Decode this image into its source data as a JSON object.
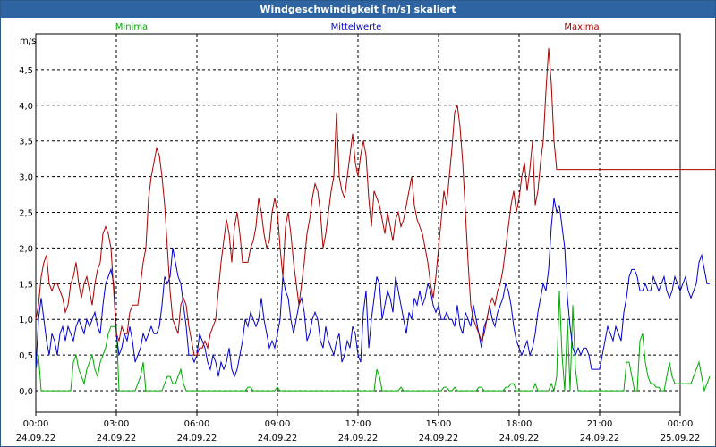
{
  "window": {
    "title": "Windgeschwindigkeit [m/s] skaliert"
  },
  "chart_data": {
    "type": "line",
    "title": "Windgeschwindigkeit [m/s] skaliert",
    "ylabel": "m/s",
    "xlabel": "",
    "ylim": [
      -0.3,
      5.0
    ],
    "yticks": [
      0.0,
      0.5,
      1.0,
      1.5,
      2.0,
      2.5,
      3.0,
      3.5,
      4.0,
      4.5
    ],
    "ytick_labels": [
      "0,0",
      "0,5",
      "1,0",
      "1,5",
      "2,0",
      "2,5",
      "3,0",
      "3,5",
      "4,0",
      "4,5"
    ],
    "xlim_hours": [
      0,
      24
    ],
    "xticks": [
      {
        "hour": 0,
        "time": "00:00",
        "date": "24.09.22"
      },
      {
        "hour": 3,
        "time": "03:00",
        "date": "24.09.22"
      },
      {
        "hour": 6,
        "time": "06:00",
        "date": "24.09.22"
      },
      {
        "hour": 9,
        "time": "09:00",
        "date": "24.09.22"
      },
      {
        "hour": 12,
        "time": "12:00",
        "date": "24.09.22"
      },
      {
        "hour": 15,
        "time": "15:00",
        "date": "24.09.22"
      },
      {
        "hour": 18,
        "time": "18:00",
        "date": "24.09.22"
      },
      {
        "hour": 21,
        "time": "21:00",
        "date": "24.09.22"
      },
      {
        "hour": 24,
        "time": "00:00",
        "date": "25.09.22"
      }
    ],
    "grid": true,
    "legend_position": "top",
    "x_step_hours": 0.1,
    "series": [
      {
        "name": "Minima",
        "color": "#00aa00",
        "values": [
          0.3,
          0.5,
          0.0,
          0.0,
          0.0,
          0.0,
          0.0,
          0.0,
          0.0,
          0.0,
          0.0,
          0.0,
          0.0,
          0.0,
          0.4,
          0.5,
          0.3,
          0.2,
          0.1,
          0.3,
          0.4,
          0.5,
          0.3,
          0.2,
          0.4,
          0.5,
          0.6,
          0.8,
          0.9,
          0.9,
          0.9,
          0.0,
          0.0,
          0.0,
          0.0,
          0.0,
          0.0,
          0.0,
          0.1,
          0.2,
          0.4,
          0.0,
          0.0,
          0.0,
          0.0,
          0.0,
          0.0,
          0.0,
          0.1,
          0.2,
          0.2,
          0.1,
          0.1,
          0.2,
          0.3,
          0.1,
          0.0,
          0.0,
          0.0,
          0.0,
          0.0,
          0.0,
          0.0,
          0.0,
          0.0,
          0.0,
          0.0,
          0.0,
          0.0,
          0.0,
          0.0,
          0.0,
          0.0,
          0.0,
          0.0,
          0.0,
          0.0,
          0.0,
          0.0,
          0.05,
          0.05,
          0.0,
          0.0,
          0.0,
          0.0,
          0.0,
          0.0,
          0.0,
          0.0,
          0.0,
          0.05,
          0.0,
          0.0,
          0.0,
          0.0,
          0.0,
          0.0,
          0.0,
          0.0,
          0.0,
          0.0,
          0.0,
          0.0,
          0.0,
          0.0,
          0.0,
          0.0,
          0.0,
          0.0,
          0.0,
          0.0,
          0.0,
          0.0,
          0.0,
          0.0,
          0.0,
          0.0,
          0.0,
          0.0,
          0.0,
          0.0,
          0.0,
          0.0,
          0.0,
          0.0,
          0.0,
          0.0,
          0.3,
          0.2,
          0.0,
          0.0,
          0.0,
          0.0,
          0.0,
          0.0,
          0.0,
          0.05,
          0.0,
          0.0,
          0.0,
          0.0,
          0.0,
          0.0,
          0.0,
          0.0,
          0.0,
          0.0,
          0.0,
          0.0,
          0.0,
          0.0,
          0.0,
          0.05,
          0.05,
          0.0,
          0.0,
          0.05,
          0.0,
          0.0,
          0.0,
          0.0,
          0.0,
          0.0,
          0.0,
          0.0,
          0.05,
          0.05,
          0.0,
          0.0,
          0.0,
          0.0,
          0.0,
          0.0,
          0.0,
          0.0,
          0.05,
          0.05,
          0.1,
          0.1,
          0.0,
          0.0,
          0.0,
          0.0,
          0.0,
          0.0,
          0.0,
          0.1,
          0.0,
          0.0,
          0.0,
          0.0,
          0.0,
          0.1,
          0.0,
          0.2,
          1.4,
          0.5,
          0.0,
          1.0,
          0.0,
          1.2,
          0.3,
          0.0,
          0.0,
          0.0,
          0.0,
          0.0,
          0.0,
          0.0,
          0.0,
          0.0,
          0.0,
          0.0,
          0.0,
          0.0,
          0.0,
          0.0,
          0.0,
          0.0,
          0.0,
          0.4,
          0.4,
          0.2,
          0.0,
          0.0,
          0.7,
          0.8,
          0.4,
          0.2,
          0.1,
          0.1,
          0.05,
          0.05,
          0.0,
          0.0,
          0.2,
          0.4,
          0.2,
          0.1,
          0.1,
          0.1,
          0.1,
          0.1,
          0.1,
          0.1,
          0.2,
          0.3,
          0.4,
          0.2,
          0.0,
          0.1,
          0.2
        ]
      },
      {
        "name": "Mittelwerte",
        "color": "#0000cc",
        "values": [
          0.3,
          1.0,
          1.3,
          1.0,
          0.7,
          0.5,
          0.8,
          0.7,
          0.5,
          0.8,
          0.9,
          0.7,
          0.9,
          0.8,
          0.7,
          0.9,
          1.0,
          0.9,
          0.8,
          1.0,
          0.9,
          1.0,
          1.1,
          0.9,
          0.8,
          1.2,
          1.5,
          1.6,
          1.7,
          1.5,
          0.8,
          0.5,
          0.6,
          0.8,
          0.7,
          0.9,
          0.7,
          0.4,
          0.5,
          0.6,
          0.8,
          0.7,
          0.8,
          0.9,
          0.8,
          0.8,
          0.9,
          1.2,
          1.6,
          1.5,
          1.6,
          2.0,
          1.8,
          1.6,
          1.5,
          1.2,
          0.9,
          0.5,
          0.5,
          0.4,
          0.5,
          0.8,
          0.7,
          0.6,
          0.4,
          0.3,
          0.5,
          0.4,
          0.2,
          0.4,
          0.3,
          0.4,
          0.6,
          0.3,
          0.2,
          0.3,
          0.5,
          0.7,
          1.0,
          0.9,
          1.1,
          1.0,
          0.9,
          1.0,
          1.3,
          1.0,
          0.8,
          0.6,
          0.7,
          0.6,
          0.8,
          1.0,
          1.6,
          1.4,
          1.3,
          1.0,
          0.8,
          1.0,
          1.2,
          1.3,
          1.1,
          0.7,
          0.8,
          1.0,
          1.1,
          1.0,
          0.7,
          0.6,
          0.9,
          0.7,
          0.6,
          0.5,
          0.7,
          0.8,
          0.4,
          0.5,
          0.7,
          0.6,
          0.9,
          0.8,
          0.5,
          0.4,
          1.1,
          1.4,
          0.6,
          1.0,
          1.3,
          1.6,
          1.5,
          1.0,
          1.2,
          1.4,
          1.3,
          1.1,
          1.6,
          1.4,
          1.2,
          1.0,
          0.8,
          1.1,
          1.0,
          1.3,
          1.2,
          1.4,
          1.2,
          1.3,
          1.5,
          1.4,
          1.2,
          1.1,
          1.2,
          1.0,
          1.0,
          1.1,
          1.0,
          1.0,
          0.9,
          1.2,
          0.9,
          0.8,
          1.1,
          1.0,
          0.9,
          1.2,
          1.0,
          0.8,
          0.6,
          0.9,
          1.0,
          1.2,
          1.0,
          0.9,
          1.1,
          1.2,
          1.3,
          1.5,
          1.4,
          1.2,
          0.9,
          0.7,
          0.6,
          0.5,
          0.6,
          0.7,
          0.5,
          0.6,
          0.8,
          1.1,
          1.3,
          1.5,
          1.4,
          1.7,
          2.3,
          2.7,
          2.5,
          2.6,
          2.3,
          2.0,
          1.3,
          0.9,
          0.6,
          0.5,
          0.6,
          0.5,
          0.6,
          0.6,
          0.5,
          0.3,
          0.3,
          0.3,
          0.3,
          0.5,
          0.7,
          0.9,
          0.8,
          0.7,
          0.9,
          0.8,
          0.7,
          1.1,
          1.3,
          1.6,
          1.7,
          1.7,
          1.6,
          1.4,
          1.4,
          1.5,
          1.4,
          1.4,
          1.6,
          1.5,
          1.4,
          1.5,
          1.6,
          1.4,
          1.3,
          1.4,
          1.6,
          1.5,
          1.4,
          1.5,
          1.6,
          1.4,
          1.3,
          1.4,
          1.5,
          1.8,
          1.9,
          1.7,
          1.5,
          1.5
        ]
      },
      {
        "name": "Maxima",
        "color": "#aa0000",
        "values": [
          1.0,
          1.2,
          1.6,
          1.8,
          1.9,
          1.5,
          1.4,
          1.5,
          1.5,
          1.4,
          1.3,
          1.1,
          1.2,
          1.5,
          1.6,
          1.8,
          1.5,
          1.3,
          1.5,
          1.6,
          1.4,
          1.2,
          1.5,
          1.7,
          1.8,
          2.2,
          2.3,
          2.2,
          2.0,
          1.4,
          0.8,
          0.7,
          0.9,
          0.8,
          0.8,
          1.1,
          1.2,
          1.2,
          1.2,
          1.5,
          1.8,
          2.0,
          2.7,
          3.0,
          3.2,
          3.4,
          3.3,
          3.0,
          2.6,
          2.0,
          1.4,
          1.0,
          0.9,
          0.8,
          1.2,
          1.3,
          1.2,
          0.9,
          0.7,
          0.5,
          0.5,
          0.6,
          0.6,
          0.7,
          0.6,
          0.8,
          0.9,
          1.0,
          1.4,
          1.8,
          2.1,
          2.4,
          2.2,
          1.8,
          2.3,
          2.5,
          2.2,
          1.8,
          1.8,
          1.8,
          2.0,
          2.1,
          2.3,
          2.7,
          2.5,
          2.2,
          2.0,
          2.1,
          2.5,
          2.7,
          2.5,
          2.0,
          1.6,
          2.3,
          2.5,
          2.2,
          1.8,
          1.5,
          1.2,
          1.5,
          1.8,
          2.2,
          2.4,
          2.7,
          2.9,
          2.8,
          2.5,
          2.0,
          2.2,
          2.5,
          2.8,
          3.0,
          3.9,
          3.0,
          2.8,
          2.7,
          3.0,
          3.3,
          3.6,
          3.2,
          3.0,
          3.3,
          3.5,
          3.3,
          2.7,
          2.3,
          2.8,
          2.7,
          2.6,
          2.4,
          2.2,
          2.5,
          2.3,
          2.1,
          2.4,
          2.5,
          2.3,
          2.4,
          2.6,
          2.8,
          3.0,
          2.6,
          2.4,
          2.3,
          2.2,
          2.0,
          1.8,
          1.5,
          1.3,
          1.6,
          2.0,
          2.4,
          2.8,
          2.6,
          3.0,
          3.4,
          3.9,
          4.0,
          3.7,
          3.2,
          2.5,
          1.8,
          1.2,
          1.0,
          0.9,
          0.8,
          0.7,
          0.8,
          1.0,
          1.2,
          1.3,
          1.2,
          1.4,
          1.5,
          1.7,
          2.0,
          2.3,
          2.6,
          2.8,
          2.5,
          2.7,
          3.0,
          3.2,
          2.8,
          3.1,
          3.5,
          2.6,
          2.8,
          3.2,
          3.5,
          4.2,
          4.8,
          4.3,
          3.5,
          3.1,
          3.1,
          3.1,
          3.1,
          3.1,
          3.1,
          3.1,
          3.1,
          3.1,
          3.1,
          3.1,
          3.1,
          3.1,
          3.1,
          3.1,
          3.1,
          3.1,
          3.1,
          3.1,
          3.1,
          3.1,
          3.1,
          3.1,
          3.1,
          3.1,
          3.1,
          3.1,
          3.1,
          3.1,
          3.1,
          3.1,
          3.1,
          3.1,
          3.1,
          3.1,
          3.1,
          3.1,
          3.1,
          3.1,
          3.1,
          3.1,
          3.1,
          3.1,
          3.1,
          3.1,
          3.1,
          3.1,
          3.1,
          3.1,
          3.1,
          3.1,
          3.1,
          3.1,
          3.1,
          3.1,
          3.1,
          3.1,
          3.1,
          3.1,
          3.1
        ]
      }
    ]
  }
}
